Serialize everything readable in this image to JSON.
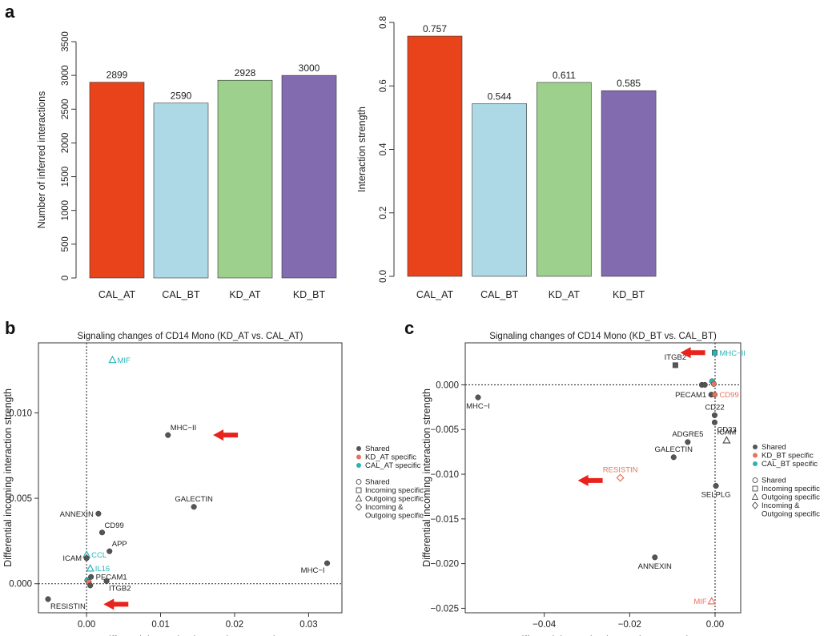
{
  "panel_labels": {
    "a": "a",
    "b": "b",
    "c": "c"
  },
  "colors": {
    "CAL_AT": "#e8431a",
    "CAL_BT": "#add8e6",
    "KD_AT": "#9cd08c",
    "KD_BT": "#836baf",
    "shared": "#555555",
    "kd_specific": "#e8735e",
    "cal_specific": "#2ab3b5",
    "arrow": "#e8221c"
  },
  "chart_data": [
    {
      "type": "bar",
      "categories": [
        "CAL_AT",
        "CAL_BT",
        "KD_AT",
        "KD_BT"
      ],
      "values": [
        2899,
        2590,
        2928,
        3000
      ],
      "value_labels": [
        "2899",
        "2590",
        "2928",
        "3000"
      ],
      "ylabel": "Number of inferred interactions",
      "ylim": [
        0,
        3500
      ],
      "yticks": [
        "0",
        "500",
        "1000",
        "1500",
        "2000",
        "2500",
        "3000",
        "3500"
      ]
    },
    {
      "type": "bar",
      "categories": [
        "CAL_AT",
        "CAL_BT",
        "KD_AT",
        "KD_BT"
      ],
      "values": [
        0.757,
        0.544,
        0.611,
        0.585
      ],
      "value_labels": [
        "0.757",
        "0.544",
        "0.611",
        "0.585"
      ],
      "ylabel": "Interaction strength",
      "ylim": [
        0,
        0.8
      ],
      "yticks": [
        "0.0",
        "0.2",
        "0.4",
        "0.6",
        "0.8"
      ]
    },
    {
      "type": "scatter",
      "title": "Signaling changes of CD14 Mono (KD_AT vs. CAL_AT)",
      "xlabel": "Differential outgoing interaction strength",
      "ylabel": "Differential incoming interaction strength",
      "xlim": [
        -0.0065,
        0.0345
      ],
      "ylim": [
        -0.0017,
        0.0141
      ],
      "xticks": [
        "0.00",
        "0.01",
        "0.02",
        "0.03"
      ],
      "yticks": [
        "0.000",
        "0.005",
        "0.010"
      ],
      "points": [
        {
          "label": "MIF",
          "x": 0.0035,
          "y": 0.0131,
          "group": "cal",
          "shape": "triangle",
          "label_pos": "right"
        },
        {
          "label": "MHC−II",
          "x": 0.011,
          "y": 0.0087,
          "group": "shared",
          "shape": "circle",
          "label_pos": "top-right"
        },
        {
          "label": "GALECTIN",
          "x": 0.0145,
          "y": 0.0045,
          "group": "shared",
          "shape": "circle",
          "label_pos": "top"
        },
        {
          "label": "MHC−I",
          "x": 0.0325,
          "y": 0.0012,
          "group": "shared",
          "shape": "circle",
          "label_pos": "bottom-left"
        },
        {
          "label": "ANNEXIN",
          "x": 0.0016,
          "y": 0.0041,
          "group": "shared",
          "shape": "circle",
          "label_pos": "left"
        },
        {
          "label": "CD99",
          "x": 0.0021,
          "y": 0.003,
          "group": "shared",
          "shape": "circle",
          "label_pos": "top-right"
        },
        {
          "label": "APP",
          "x": 0.0031,
          "y": 0.0019,
          "group": "shared",
          "shape": "circle",
          "label_pos": "top-right"
        },
        {
          "label": "CCL",
          "x": 0.0,
          "y": 0.0017,
          "group": "cal",
          "shape": "triangle",
          "label_pos": "right"
        },
        {
          "label": "ICAM",
          "x": 0.0,
          "y": 0.0015,
          "group": "shared",
          "shape": "circle",
          "label_pos": "left"
        },
        {
          "label": "IL16",
          "x": 0.0005,
          "y": 0.0009,
          "group": "cal",
          "shape": "triangle",
          "label_pos": "right"
        },
        {
          "label": "PECAM1",
          "x": 0.0006,
          "y": 0.0004,
          "group": "shared",
          "shape": "circle",
          "label_pos": "right"
        },
        {
          "label": "",
          "x": 0.0001,
          "y": 0.0002,
          "group": "cal",
          "shape": "circle",
          "label_pos": "none"
        },
        {
          "label": "",
          "x": 0.0003,
          "y": 0.0001,
          "group": "kd",
          "shape": "circle",
          "label_pos": "none"
        },
        {
          "label": "ITGB2",
          "x": 0.0027,
          "y": 0.00015,
          "group": "shared",
          "shape": "circle",
          "label_pos": "bottom-right"
        },
        {
          "label": "",
          "x": 0.0005,
          "y": -0.0001,
          "group": "shared",
          "shape": "circle",
          "label_pos": "none"
        },
        {
          "label": "RESISTIN",
          "x": -0.0052,
          "y": -0.0009,
          "group": "shared",
          "shape": "circle",
          "label_pos": "bottom-right"
        }
      ],
      "arrows": [
        {
          "target": "MHC−II",
          "x": 0.0185,
          "y": 0.0087
        },
        {
          "target": "RESISTIN",
          "x": 0.0037,
          "y": -0.0012
        }
      ],
      "legend": {
        "colors": [
          "Shared",
          "KD_AT specific",
          "CAL_AT specific"
        ],
        "shapes": [
          "Shared",
          "Incoming specific",
          "Outgoing specific",
          "Incoming &",
          "Outgoing specific"
        ]
      }
    },
    {
      "type": "scatter",
      "title": "Signaling changes of CD14 Mono (KD_BT vs. CAL_BT)",
      "xlabel": "Differential outgoing interaction strength",
      "ylabel": "Differential incoming interaction strength",
      "xlim": [
        -0.0585,
        0.006
      ],
      "ylim": [
        -0.0255,
        0.0047
      ],
      "xticks": [
        "−0.04",
        "−0.02",
        "0.00"
      ],
      "yticks": [
        "−0.025",
        "−0.020",
        "−0.015",
        "−0.010",
        "−0.005",
        "0.000"
      ],
      "points": [
        {
          "label": "MHC−II",
          "x": -0.0001,
          "y": 0.0036,
          "group": "cal",
          "shape": "square",
          "label_pos": "right"
        },
        {
          "label": "ITGB2",
          "x": -0.0093,
          "y": 0.0022,
          "group": "shared",
          "shape": "square",
          "label_pos": "top"
        },
        {
          "label": "MHC−I",
          "x": -0.0555,
          "y": -0.0014,
          "group": "shared",
          "shape": "circle",
          "label_pos": "bottom"
        },
        {
          "label": "",
          "x": -0.0031,
          "y": 0.0,
          "group": "shared",
          "shape": "circle",
          "label_pos": "none"
        },
        {
          "label": "",
          "x": -0.0024,
          "y": 0.0,
          "group": "shared",
          "shape": "circle",
          "label_pos": "none"
        },
        {
          "label": "",
          "x": -0.0007,
          "y": 0.0004,
          "group": "cal",
          "shape": "circle",
          "label_pos": "none"
        },
        {
          "label": "",
          "x": -0.0003,
          "y": 0.0001,
          "group": "kd",
          "shape": "circle",
          "label_pos": "none"
        },
        {
          "label": "PECAM1",
          "x": -0.0009,
          "y": -0.0011,
          "group": "shared",
          "shape": "circle",
          "label_pos": "left"
        },
        {
          "label": "CD99",
          "x": -0.0001,
          "y": -0.0011,
          "group": "kd",
          "shape": "circle",
          "label_pos": "right"
        },
        {
          "label": "CD22",
          "x": -0.0001,
          "y": -0.0034,
          "group": "shared",
          "shape": "circle",
          "label_pos": "top"
        },
        {
          "label": "CD23",
          "x": -0.0001,
          "y": -0.0042,
          "group": "shared",
          "shape": "circle",
          "label_pos": "bottom-right"
        },
        {
          "label": "ADGRE5",
          "x": -0.0064,
          "y": -0.0064,
          "group": "shared",
          "shape": "circle",
          "label_pos": "top"
        },
        {
          "label": "ICAM",
          "x": 0.0027,
          "y": -0.0062,
          "group": "shared",
          "shape": "triangle",
          "label_pos": "top"
        },
        {
          "label": "GALECTIN",
          "x": -0.0097,
          "y": -0.0081,
          "group": "shared",
          "shape": "circle",
          "label_pos": "top"
        },
        {
          "label": "RESISTIN",
          "x": -0.0222,
          "y": -0.0104,
          "group": "kd",
          "shape": "diamond",
          "label_pos": "top"
        },
        {
          "label": "SELPLG",
          "x": 0.0002,
          "y": -0.0113,
          "group": "shared",
          "shape": "circle",
          "label_pos": "bottom"
        },
        {
          "label": "ANNEXIN",
          "x": -0.0141,
          "y": -0.0193,
          "group": "shared",
          "shape": "circle",
          "label_pos": "bottom"
        },
        {
          "label": "MIF",
          "x": -0.0008,
          "y": -0.0242,
          "group": "kd",
          "shape": "triangle",
          "label_pos": "left"
        }
      ],
      "arrows": [
        {
          "target": "MHC−II",
          "x": -0.0057,
          "y": 0.0036
        },
        {
          "target": "RESISTIN",
          "x": -0.0297,
          "y": -0.0107
        }
      ],
      "legend": {
        "colors": [
          "Shared",
          "KD_BT specific",
          "CAL_BT specific"
        ],
        "shapes": [
          "Shared",
          "Incoming specific",
          "Outgoing specific",
          "Incoming &",
          "Outgoing specific"
        ]
      }
    }
  ]
}
